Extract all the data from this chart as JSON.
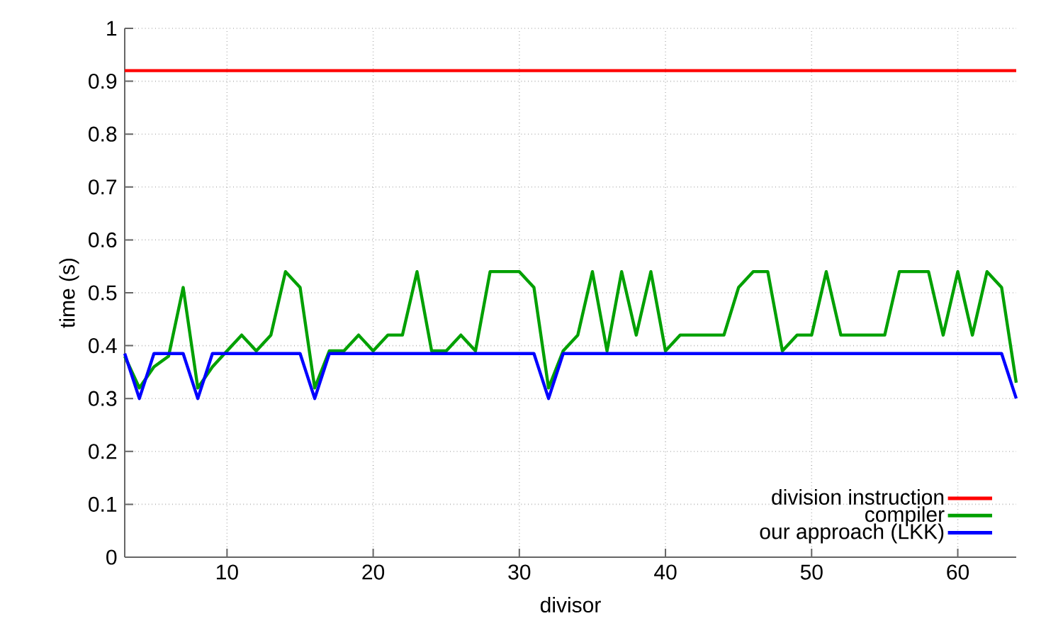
{
  "chart_data": {
    "type": "line",
    "xlabel": "divisor",
    "ylabel": "time (s)",
    "x": [
      3,
      4,
      5,
      6,
      7,
      8,
      9,
      10,
      11,
      12,
      13,
      14,
      15,
      16,
      17,
      18,
      19,
      20,
      21,
      22,
      23,
      24,
      25,
      26,
      27,
      28,
      29,
      30,
      31,
      32,
      33,
      34,
      35,
      36,
      37,
      38,
      39,
      40,
      41,
      42,
      43,
      44,
      45,
      46,
      47,
      48,
      49,
      50,
      51,
      52,
      53,
      54,
      55,
      56,
      57,
      58,
      59,
      60,
      61,
      62,
      63,
      64
    ],
    "series": [
      {
        "name": "division instruction",
        "color": "#ff0000",
        "values": [
          0.92,
          0.92,
          0.92,
          0.92,
          0.92,
          0.92,
          0.92,
          0.92,
          0.92,
          0.92,
          0.92,
          0.92,
          0.92,
          0.92,
          0.92,
          0.92,
          0.92,
          0.92,
          0.92,
          0.92,
          0.92,
          0.92,
          0.92,
          0.92,
          0.92,
          0.92,
          0.92,
          0.92,
          0.92,
          0.92,
          0.92,
          0.92,
          0.92,
          0.92,
          0.92,
          0.92,
          0.92,
          0.92,
          0.92,
          0.92,
          0.92,
          0.92,
          0.92,
          0.92,
          0.92,
          0.92,
          0.92,
          0.92,
          0.92,
          0.92,
          0.92,
          0.92,
          0.92,
          0.92,
          0.92,
          0.92,
          0.92,
          0.92,
          0.92,
          0.92,
          0.92,
          0.92
        ]
      },
      {
        "name": "compiler",
        "color": "#00a000",
        "values": [
          0.38,
          0.32,
          0.36,
          0.38,
          0.51,
          0.32,
          0.36,
          0.39,
          0.42,
          0.39,
          0.42,
          0.54,
          0.51,
          0.32,
          0.39,
          0.39,
          0.42,
          0.39,
          0.42,
          0.42,
          0.54,
          0.39,
          0.39,
          0.42,
          0.39,
          0.54,
          0.54,
          0.54,
          0.51,
          0.32,
          0.39,
          0.42,
          0.54,
          0.39,
          0.54,
          0.42,
          0.54,
          0.39,
          0.42,
          0.42,
          0.42,
          0.42,
          0.51,
          0.54,
          0.54,
          0.39,
          0.42,
          0.42,
          0.54,
          0.42,
          0.42,
          0.42,
          0.42,
          0.54,
          0.54,
          0.54,
          0.42,
          0.54,
          0.42,
          0.54,
          0.51,
          0.33
        ]
      },
      {
        "name": "our approach (LKK)",
        "color": "#0000ff",
        "values": [
          0.385,
          0.3,
          0.385,
          0.385,
          0.385,
          0.3,
          0.385,
          0.385,
          0.385,
          0.385,
          0.385,
          0.385,
          0.385,
          0.3,
          0.385,
          0.385,
          0.385,
          0.385,
          0.385,
          0.385,
          0.385,
          0.385,
          0.385,
          0.385,
          0.385,
          0.385,
          0.385,
          0.385,
          0.385,
          0.3,
          0.385,
          0.385,
          0.385,
          0.385,
          0.385,
          0.385,
          0.385,
          0.385,
          0.385,
          0.385,
          0.385,
          0.385,
          0.385,
          0.385,
          0.385,
          0.385,
          0.385,
          0.385,
          0.385,
          0.385,
          0.385,
          0.385,
          0.385,
          0.385,
          0.385,
          0.385,
          0.385,
          0.385,
          0.385,
          0.385,
          0.385,
          0.3
        ]
      }
    ],
    "xlim": [
      3,
      64
    ],
    "xticks": [
      10,
      20,
      30,
      40,
      50,
      60
    ],
    "ylim": [
      0,
      1
    ],
    "yticks": [
      0,
      0.1,
      0.2,
      0.3,
      0.4,
      0.5,
      0.6,
      0.7,
      0.8,
      0.9,
      1
    ],
    "grid": true,
    "legend": "bottom right",
    "marker": "none",
    "line_style": "solid"
  }
}
